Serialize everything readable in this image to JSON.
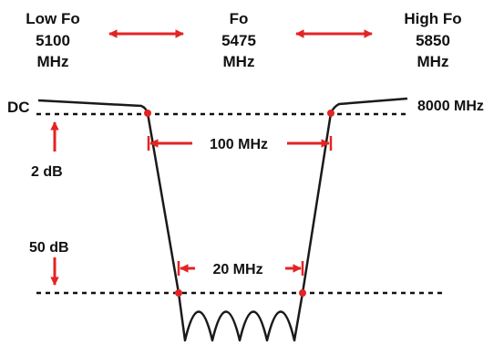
{
  "header": {
    "low": {
      "title": "Low Fo",
      "value": "5100",
      "unit": "MHz"
    },
    "center": {
      "title": "Fo",
      "value": "5475",
      "unit": "MHz"
    },
    "high": {
      "title": "High Fo",
      "value": "5850",
      "unit": "MHz"
    }
  },
  "labels": {
    "dc": "DC",
    "top_freq": "8000 MHz",
    "ripple": "2 dB",
    "rejection": "50 dB",
    "upper_bandwidth": "100 MHz",
    "lower_bandwidth": "20 MHz"
  },
  "colors": {
    "arrow": "#e32424",
    "curve": "#1a1a1a",
    "marker": "#e32424"
  }
}
